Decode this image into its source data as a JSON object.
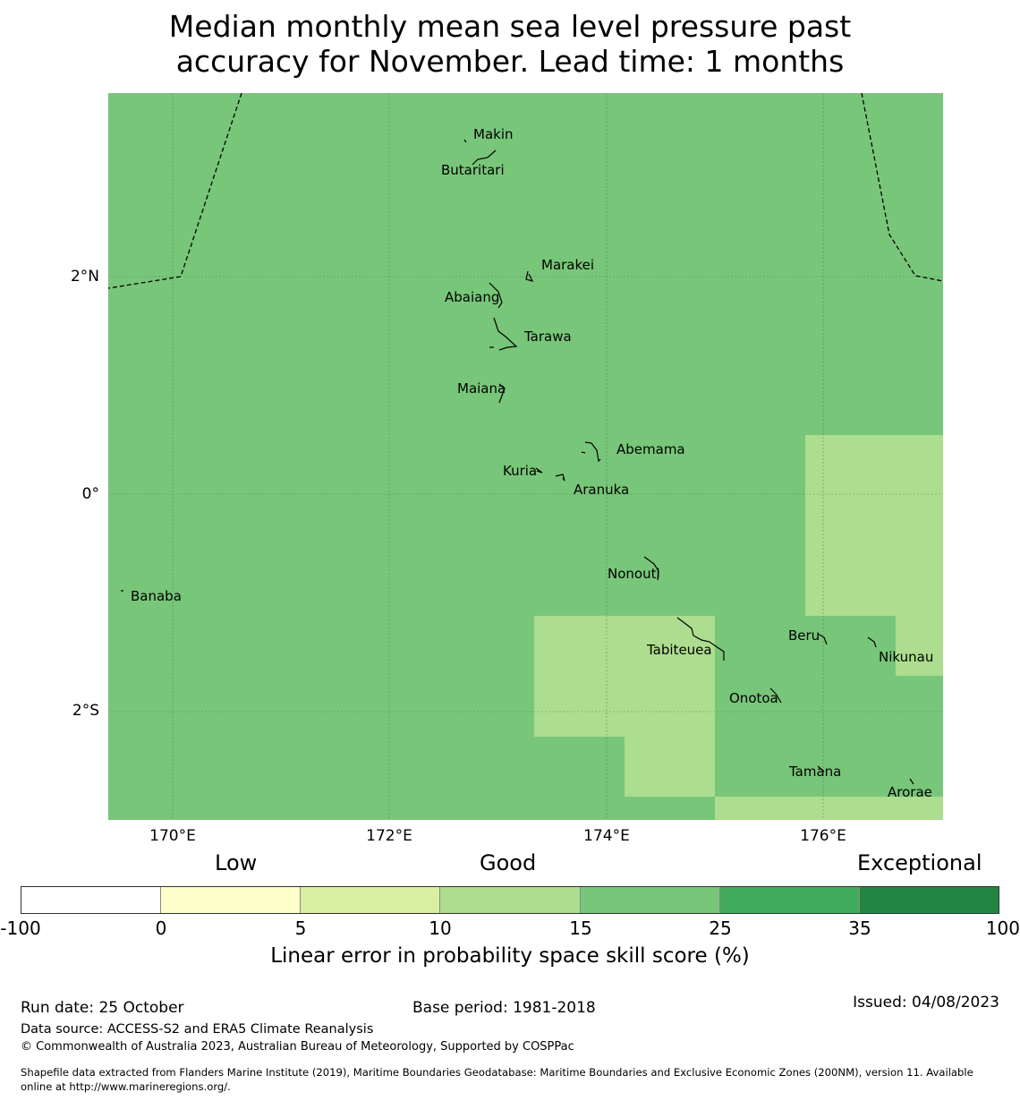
{
  "title": {
    "line1": "Median monthly mean sea level pressure past",
    "line2": "accuracy for November. Lead time: 1 months"
  },
  "map": {
    "background_color": "#78c679",
    "highlight_color": "#addd8e",
    "axes": {
      "y_labels": [
        "2°N",
        "0°",
        "2°S"
      ],
      "x_labels": [
        "170°E",
        "172°E",
        "174°E",
        "176°E"
      ]
    },
    "islands": [
      {
        "name": "Makin"
      },
      {
        "name": "Butaritari"
      },
      {
        "name": "Marakei"
      },
      {
        "name": "Abaiang"
      },
      {
        "name": "Tarawa"
      },
      {
        "name": "Maiana"
      },
      {
        "name": "Abemama"
      },
      {
        "name": "Kuria"
      },
      {
        "name": "Aranuka"
      },
      {
        "name": "Nonouti"
      },
      {
        "name": "Banaba"
      },
      {
        "name": "Tabiteuea"
      },
      {
        "name": "Beru"
      },
      {
        "name": "Nikunau"
      },
      {
        "name": "Onotoa"
      },
      {
        "name": "Tamana"
      },
      {
        "name": "Arorae"
      }
    ]
  },
  "legend": {
    "categories": {
      "low": "Low",
      "good": "Good",
      "exceptional": "Exceptional"
    },
    "segments": [
      {
        "from": "-100",
        "to": "0",
        "color": "#ffffff"
      },
      {
        "from": "0",
        "to": "5",
        "color": "#ffffcc"
      },
      {
        "from": "5",
        "to": "10",
        "color": "#d9f0a3"
      },
      {
        "from": "10",
        "to": "15",
        "color": "#addd8e"
      },
      {
        "from": "15",
        "to": "25",
        "color": "#78c679"
      },
      {
        "from": "25",
        "to": "35",
        "color": "#41ab5d"
      },
      {
        "from": "35",
        "to": "100",
        "color": "#238443"
      }
    ],
    "ticks": [
      "-100",
      "0",
      "5",
      "10",
      "15",
      "25",
      "35",
      "100"
    ],
    "title": "Linear error in probability space skill score (%)"
  },
  "footer": {
    "run_date": "Run date: 25 October",
    "base_period": "Base period: 1981-2018",
    "issued": "Issued: 04/08/2023",
    "data_source": "Data source: ACCESS-S2 and ERA5 Climate Reanalysis",
    "copyright": "© Commonwealth of Australia 2023, Australian Bureau of Meteorology, Supported by COSPPac",
    "shapefile_line1": "Shapefile data extracted from Flanders Marine Institute (2019), Maritime Boundaries Geodatabase: Maritime Boundaries and Exclusive Economic Zones (200NM), version 11. Available",
    "shapefile_line2": "online at http://www.marineregions.org/."
  }
}
